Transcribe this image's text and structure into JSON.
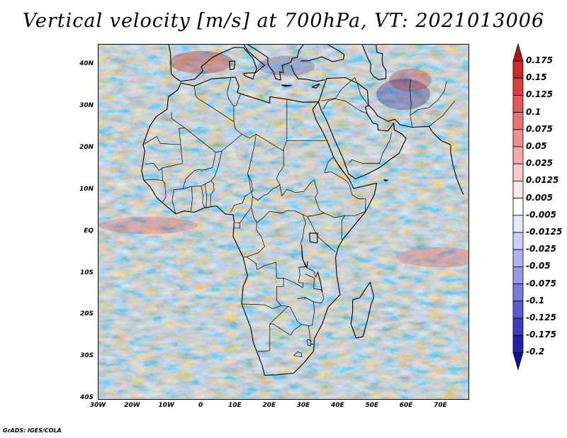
{
  "title": "Vertical velocity [m/s] at 700hPa, VT: 2021013006",
  "map": {
    "region": "Africa and Middle East",
    "lat_range": [
      -40,
      45
    ],
    "lon_range": [
      -30,
      78
    ],
    "lat_labels": [
      {
        "lat": 40,
        "text": "40N"
      },
      {
        "lat": 30,
        "text": "30N"
      },
      {
        "lat": 20,
        "text": "20N"
      },
      {
        "lat": 10,
        "text": "10N"
      },
      {
        "lat": 0,
        "text": "EQ"
      },
      {
        "lat": -10,
        "text": "10S"
      },
      {
        "lat": -20,
        "text": "20S"
      },
      {
        "lat": -30,
        "text": "30S"
      },
      {
        "lat": -40,
        "text": "40S"
      }
    ],
    "lon_labels": [
      {
        "lon": -30,
        "text": "30W"
      },
      {
        "lon": -20,
        "text": "20W"
      },
      {
        "lon": -10,
        "text": "10W"
      },
      {
        "lon": 0,
        "text": "0"
      },
      {
        "lon": 10,
        "text": "10E"
      },
      {
        "lon": 20,
        "text": "20E"
      },
      {
        "lon": 30,
        "text": "30E"
      },
      {
        "lon": 40,
        "text": "40E"
      },
      {
        "lon": 50,
        "text": "50E"
      },
      {
        "lon": 60,
        "text": "60E"
      },
      {
        "lon": 70,
        "text": "70E"
      }
    ]
  },
  "colorbar": {
    "labels": [
      "0.175",
      "0.15",
      "0.125",
      "0.1",
      "0.075",
      "0.05",
      "0.025",
      "0.0125",
      "0.005",
      "-0.005",
      "-0.0125",
      "-0.025",
      "-0.05",
      "-0.075",
      "-0.1",
      "-0.125",
      "-0.175",
      "-0.2"
    ],
    "colors": [
      "#b01818",
      "#c92a2a",
      "#d94040",
      "#e25a5a",
      "#e87474",
      "#ee9090",
      "#f3acac",
      "#f8cccc",
      "#fde8e8",
      "#ffffff",
      "#e6e6fc",
      "#cdcdf6",
      "#b2b2f0",
      "#9898e8",
      "#7a7ade",
      "#5c5cd0",
      "#3c3cbc",
      "#2222a8",
      "#12128e"
    ]
  },
  "footer": "GrADS: IGES/COLA"
}
